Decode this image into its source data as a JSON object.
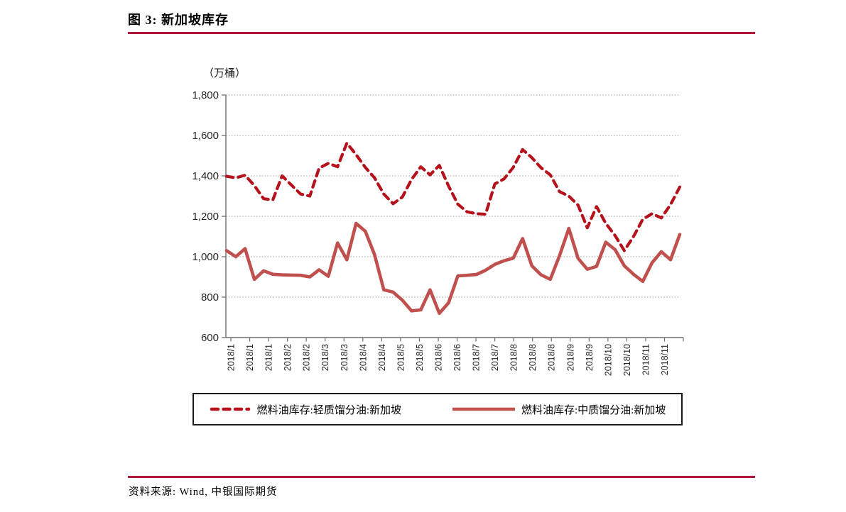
{
  "figure": {
    "title": "图 3: 新加坡库存",
    "unit_label": "（万桶）",
    "source_text": "资料来源: Wind, 中银国际期货"
  },
  "colors": {
    "rule_red": "#b0173a",
    "light_distillate_red": "#b5121c",
    "middle_distillate_red": "#c0504d",
    "axis_gray": "#6e6e6e",
    "grid_gray": "#9b9b9b",
    "text_black": "#262626"
  },
  "legend": {
    "items": [
      {
        "label": "燃料油库存:轻质馏分油:新加坡",
        "style": "dashed",
        "color": "#b5121c"
      },
      {
        "label": "燃料油库存:中质馏分油:新加坡",
        "style": "solid",
        "color": "#c0504d"
      }
    ]
  },
  "chart_data": {
    "type": "line",
    "title": "新加坡库存",
    "ylabel": "（万桶）",
    "xlabel": "",
    "ylim": [
      600,
      1800
    ],
    "ytick_step": 200,
    "y_tick_labels": [
      "600",
      "800",
      "1,000",
      "1,200",
      "1,400",
      "1,600",
      "1,800"
    ],
    "grid": "horizontal dotted",
    "legend_position": "bottom box",
    "x_labels": [
      "2018/1",
      "2018/1",
      "2018/1",
      "2018/2",
      "2018/2",
      "2018/3",
      "2018/3",
      "2018/4",
      "2018/4",
      "2018/5",
      "2018/5",
      "2018/6",
      "2018/6",
      "2018/7",
      "2018/7",
      "2018/8",
      "2018/8",
      "2018/8",
      "2018/9",
      "2018/9",
      "2018/10",
      "2018/10",
      "2018/11",
      "2018/11"
    ],
    "series": [
      {
        "name": "燃料油库存:轻质馏分油:新加坡",
        "style": "dashed",
        "color": "#b5121c",
        "values": [
          1398,
          1390,
          1403,
          1352,
          1287,
          1281,
          1400,
          1355,
          1310,
          1300,
          1438,
          1462,
          1445,
          1562,
          1505,
          1442,
          1390,
          1310,
          1262,
          1295,
          1382,
          1445,
          1405,
          1452,
          1350,
          1260,
          1222,
          1213,
          1210,
          1360,
          1385,
          1442,
          1530,
          1490,
          1440,
          1405,
          1322,
          1300,
          1255,
          1143,
          1248,
          1165,
          1105,
          1030,
          1100,
          1185,
          1213,
          1192,
          1258,
          1345
        ]
      },
      {
        "name": "燃料油库存:中质馏分油:新加坡",
        "style": "solid",
        "color": "#c0504d",
        "values": [
          1030,
          1000,
          1040,
          888,
          930,
          913,
          910,
          909,
          908,
          900,
          935,
          903,
          1068,
          985,
          1165,
          1126,
          1010,
          836,
          825,
          785,
          732,
          737,
          836,
          720,
          772,
          905,
          908,
          912,
          933,
          962,
          980,
          993,
          1090,
          955,
          910,
          888,
          1005,
          1140,
          992,
          938,
          952,
          1072,
          1035,
          955,
          913,
          878,
          970,
          1025,
          985,
          1110
        ]
      }
    ]
  }
}
